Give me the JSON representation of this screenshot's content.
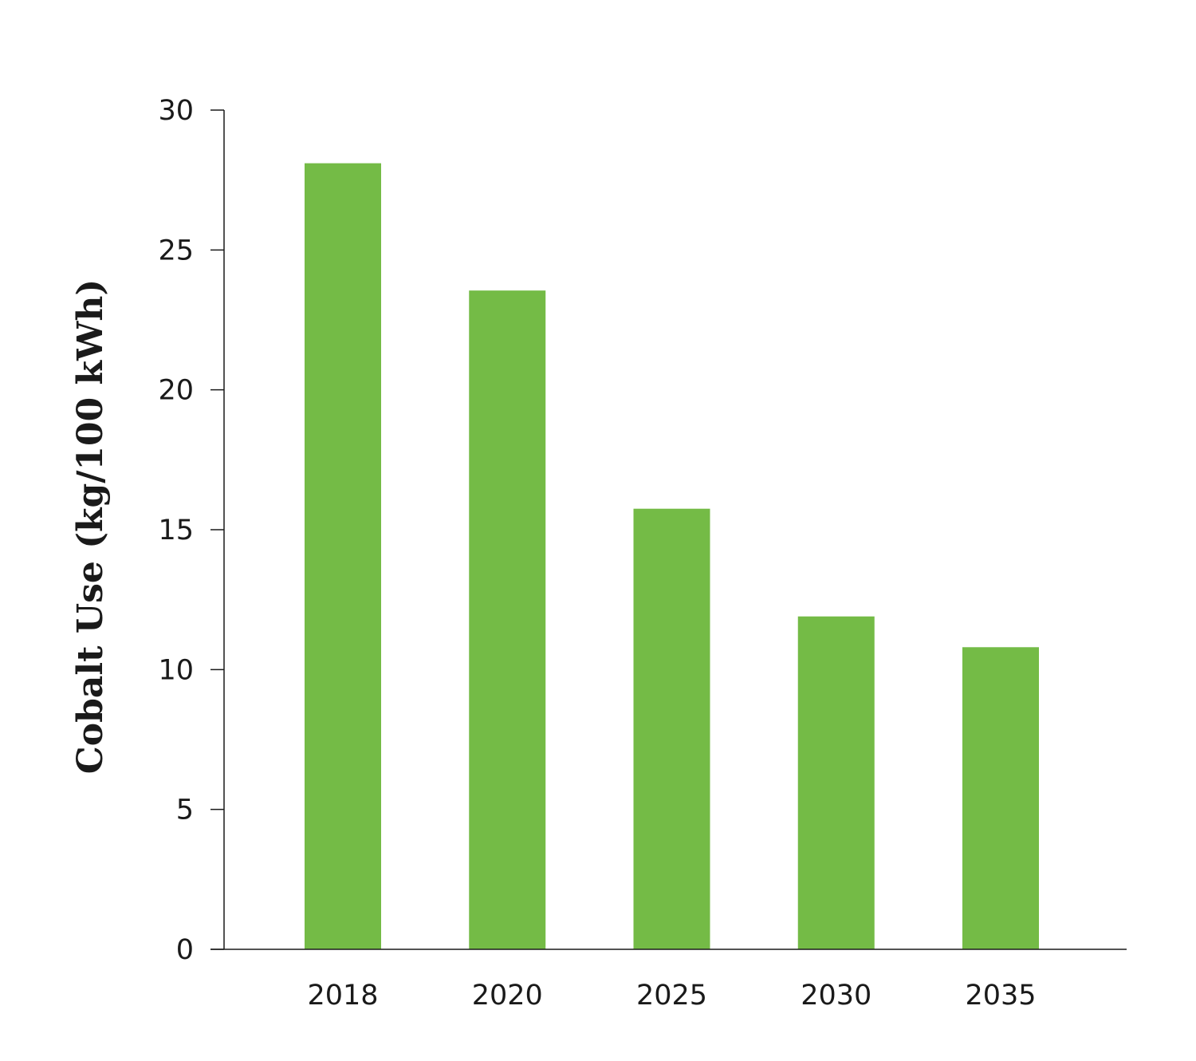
{
  "chart_data": {
    "type": "bar",
    "title": "",
    "xlabel": "",
    "ylabel": "Cobalt Use (kg/100 kWh)",
    "categories": [
      "2018",
      "2020",
      "2025",
      "2030",
      "2035"
    ],
    "values": [
      28.1,
      23.55,
      15.75,
      11.9,
      10.8
    ],
    "ylim": [
      0,
      30
    ],
    "yticks": [
      0,
      5,
      10,
      15,
      20,
      25,
      30
    ],
    "ytick_labels": [
      "0",
      "5",
      "10",
      "15",
      "20",
      "25",
      "30"
    ],
    "grid": false,
    "legend": "none",
    "bar_color": "#74bb46",
    "axis_color": "#1a1a1a"
  }
}
